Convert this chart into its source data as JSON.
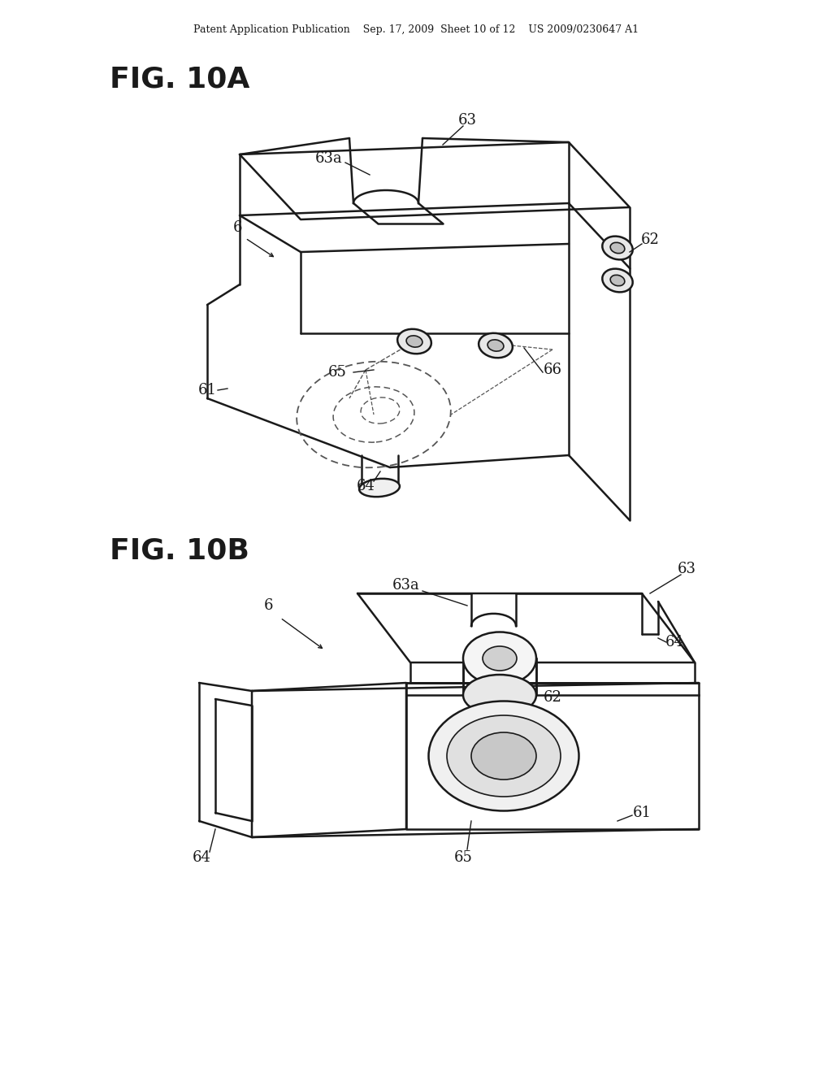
{
  "bg_color": "#ffffff",
  "line_color": "#1a1a1a",
  "dashed_color": "#555555",
  "header": "Patent Application Publication    Sep. 17, 2009  Sheet 10 of 12    US 2009/0230647 A1",
  "fig10a_title": "FIG. 10A",
  "fig10b_title": "FIG. 10B",
  "figsize": [
    10.24,
    13.2
  ],
  "dpi": 100
}
